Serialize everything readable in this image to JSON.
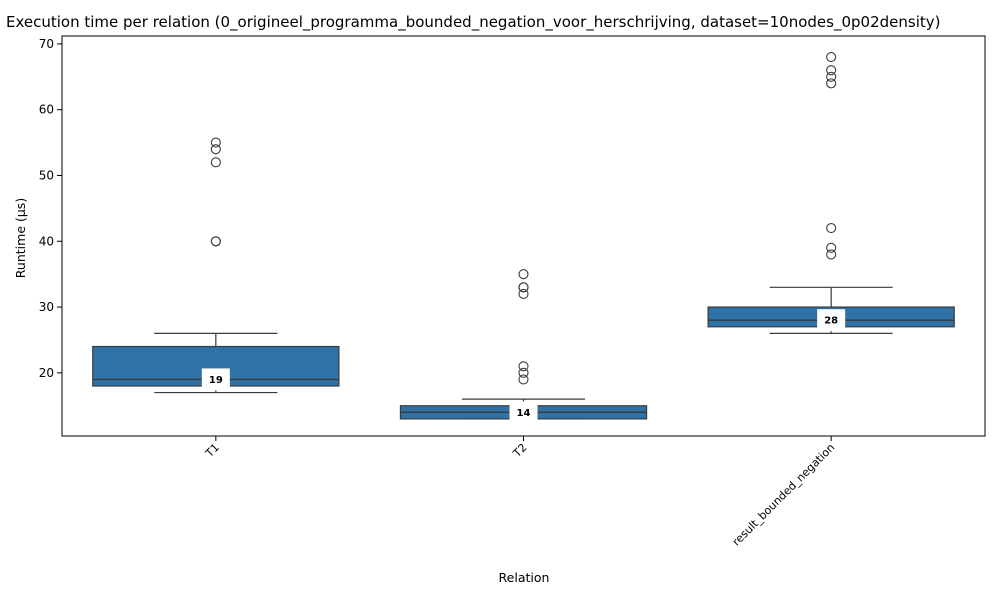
{
  "chart_data": {
    "type": "box",
    "title": "Execution time per relation (0_origineel_programma_bounded_negation_voor_herschrijving, dataset=10nodes_0p02density)",
    "xlabel": "Relation",
    "ylabel": "Runtime (µs)",
    "ylim": [
      10.4,
      71.2
    ],
    "yticks": [
      20,
      30,
      40,
      50,
      60,
      70
    ],
    "grid": false,
    "box_color": "#2f72a8",
    "line_color": "#3a3a3a",
    "categories": [
      "T1",
      "T2",
      "result_bounded_negation"
    ],
    "boxes": [
      {
        "category": "T1",
        "whisker_low": 17,
        "q1": 18,
        "median": 19,
        "q3": 24,
        "whisker_high": 26,
        "median_label": "19",
        "outliers": [
          40,
          40,
          52,
          54,
          55
        ]
      },
      {
        "category": "T2",
        "whisker_low": 13,
        "q1": 13,
        "median": 14,
        "q3": 15,
        "whisker_high": 16,
        "median_label": "14",
        "outliers": [
          19,
          20,
          21,
          32,
          33,
          33,
          35
        ]
      },
      {
        "category": "result_bounded_negation",
        "whisker_low": 26,
        "q1": 27,
        "median": 28,
        "q3": 30,
        "whisker_high": 33,
        "median_label": "28",
        "outliers": [
          38,
          39,
          42,
          64,
          65,
          66,
          68
        ]
      }
    ]
  }
}
